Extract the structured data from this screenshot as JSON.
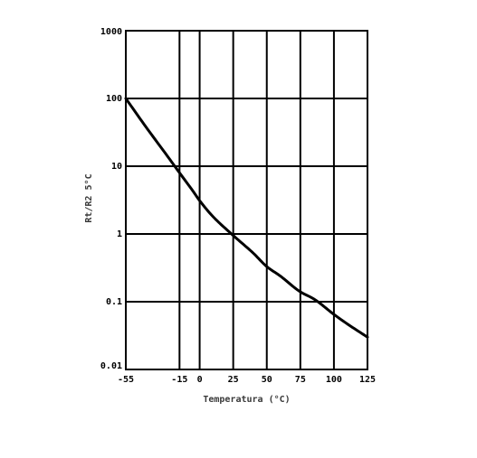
{
  "chart_data": {
    "type": "line",
    "title": "",
    "xlabel": "Temperatura (°C)",
    "ylabel": "Rt/R2 5°C",
    "x_scale": "linear",
    "y_scale": "log",
    "xlim": [
      -55,
      125
    ],
    "ylim": [
      0.01,
      1000
    ],
    "x_ticks": [
      -55,
      -15,
      0,
      25,
      50,
      75,
      100,
      125
    ],
    "x_tick_labels": [
      "-55",
      "-15",
      "0",
      "25",
      "50",
      "75",
      "100",
      "125"
    ],
    "y_ticks": [
      0.01,
      0.1,
      1,
      10,
      100,
      1000
    ],
    "y_tick_labels": [
      "0.01",
      "0.1",
      "1",
      "10",
      "100",
      "1000"
    ],
    "grid": true,
    "legend": "none",
    "colors": {
      "curve": "#000000",
      "grid": "#000000",
      "axis_title": "#3a3a3a"
    },
    "series": [
      {
        "x": [
          -55,
          -40,
          -25,
          -15,
          -5,
          0,
          10,
          25,
          40,
          50,
          60,
          75,
          85,
          100,
          110,
          125
        ],
        "values": [
          100,
          38,
          15,
          8,
          4.3,
          3.1,
          1.8,
          0.95,
          0.52,
          0.33,
          0.24,
          0.14,
          0.11,
          0.065,
          0.047,
          0.03
        ]
      }
    ]
  }
}
